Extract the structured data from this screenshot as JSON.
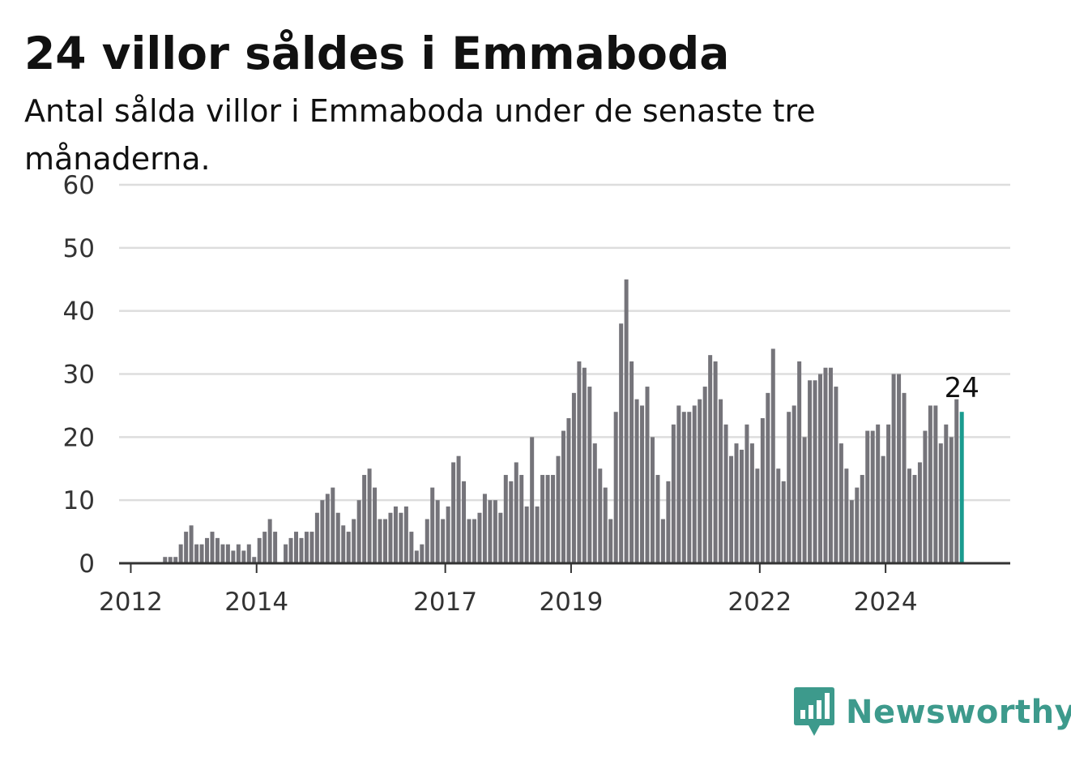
{
  "title": "24 villor såldes i Emmaboda",
  "subtitle": "Antal sålda villor i Emmaboda under de senaste tre månaderna.",
  "brand": {
    "name": "Newsworthy",
    "color": "#3d9a8c",
    "icon": "newsworthy-logo-icon"
  },
  "colors": {
    "bar": "#75747a",
    "highlight": "#1a9b8f",
    "grid": "#dddddd",
    "axis": "#333333"
  },
  "chart_data": {
    "type": "bar",
    "start": "2011-11",
    "ylim": [
      0,
      60
    ],
    "yticks": [
      0,
      10,
      20,
      30,
      40,
      50,
      60
    ],
    "xticks": [
      {
        "label": "2012",
        "index": 2
      },
      {
        "label": "2014",
        "index": 26
      },
      {
        "label": "2017",
        "index": 62
      },
      {
        "label": "2019",
        "index": 86
      },
      {
        "label": "2022",
        "index": 122
      },
      {
        "label": "2024",
        "index": 146
      }
    ],
    "highlight_label": "24",
    "values": [
      0,
      0,
      0,
      0,
      0,
      0,
      0,
      0,
      1,
      1,
      1,
      3,
      5,
      6,
      3,
      3,
      4,
      5,
      4,
      3,
      3,
      2,
      3,
      2,
      3,
      1,
      4,
      5,
      7,
      5,
      0,
      3,
      4,
      5,
      4,
      5,
      5,
      8,
      10,
      11,
      12,
      8,
      6,
      5,
      7,
      10,
      14,
      15,
      12,
      7,
      7,
      8,
      9,
      8,
      9,
      5,
      2,
      3,
      7,
      12,
      10,
      7,
      9,
      16,
      17,
      13,
      7,
      7,
      8,
      11,
      10,
      10,
      8,
      14,
      13,
      16,
      14,
      9,
      20,
      9,
      14,
      14,
      14,
      17,
      21,
      23,
      27,
      32,
      31,
      28,
      19,
      15,
      12,
      7,
      24,
      38,
      45,
      32,
      26,
      25,
      28,
      20,
      14,
      7,
      13,
      22,
      25,
      24,
      24,
      25,
      26,
      28,
      33,
      32,
      26,
      22,
      17,
      19,
      18,
      22,
      19,
      15,
      23,
      27,
      34,
      15,
      13,
      24,
      25,
      32,
      20,
      29,
      29,
      30,
      31,
      31,
      28,
      19,
      15,
      10,
      12,
      14,
      21,
      21,
      22,
      17,
      22,
      30,
      30,
      27,
      15,
      14,
      16,
      21,
      25,
      25,
      19,
      22,
      20,
      26,
      24
    ]
  }
}
